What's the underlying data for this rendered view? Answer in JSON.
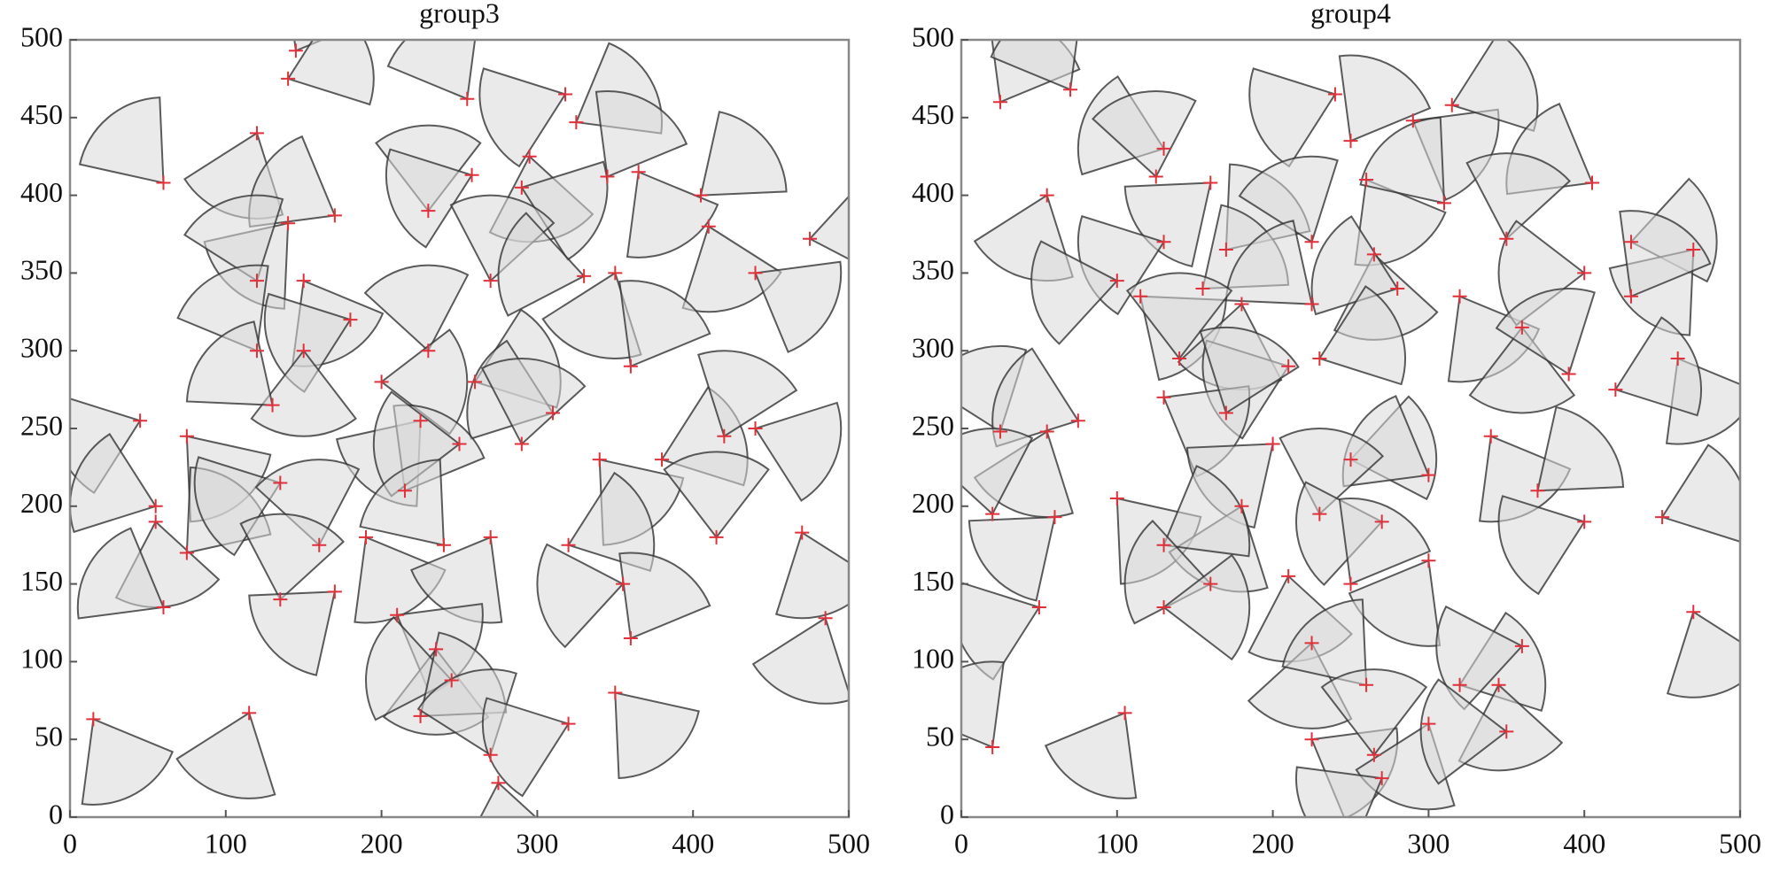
{
  "chart_data": [
    {
      "type": "sector",
      "title": "group3",
      "sensing_radius": 55,
      "sensing_angle": 75,
      "fill": "#d9d9d9",
      "stroke": "#333333",
      "marker_color": "#e0303a",
      "xlim": [
        0,
        500
      ],
      "ylim": [
        0,
        500
      ],
      "xticks": [
        0,
        100,
        200,
        300,
        400,
        500
      ],
      "yticks": [
        0,
        50,
        100,
        150,
        200,
        250,
        300,
        350,
        400,
        450,
        500
      ],
      "x": [
        145,
        140,
        255,
        318,
        325,
        120,
        60,
        295,
        230,
        170,
        258,
        290,
        345,
        365,
        405,
        140,
        410,
        475,
        120,
        150,
        270,
        330,
        350,
        440,
        180,
        230,
        260,
        310,
        360,
        150,
        120,
        45,
        75,
        130,
        200,
        225,
        215,
        250,
        290,
        340,
        380,
        420,
        440,
        55,
        55,
        75,
        135,
        160,
        190,
        240,
        270,
        320,
        355,
        415,
        470,
        60,
        135,
        170,
        210,
        235,
        245,
        225,
        270,
        275,
        320,
        350,
        360,
        485,
        15,
        115
      ],
      "y": [
        493,
        475,
        462,
        465,
        447,
        440,
        408,
        425,
        390,
        387,
        413,
        405,
        412,
        415,
        400,
        382,
        380,
        372,
        345,
        345,
        345,
        348,
        350,
        350,
        320,
        300,
        280,
        260,
        290,
        300,
        300,
        255,
        245,
        265,
        280,
        255,
        210,
        240,
        240,
        230,
        230,
        245,
        250,
        200,
        190,
        170,
        215,
        175,
        180,
        175,
        180,
        175,
        150,
        180,
        183,
        135,
        140,
        145,
        130,
        108,
        88,
        65,
        40,
        22,
        60,
        80,
        115,
        128,
        63,
        67
      ],
      "heading": [
        60,
        20,
        120,
        200,
        30,
        250,
        130,
        280,
        90,
        150,
        200,
        340,
        60,
        300,
        40,
        230,
        290,
        10,
        110,
        300,
        80,
        170,
        250,
        330,
        200,
        100,
        20,
        160,
        60,
        270,
        120,
        200,
        310,
        140,
        0,
        230,
        60,
        180,
        80,
        310,
        20,
        70,
        340,
        160,
        280,
        50,
        200,
        100,
        300,
        130,
        240,
        20,
        190,
        90,
        290,
        150,
        80,
        220,
        330,
        270,
        170,
        40,
        110,
        280,
        200,
        310,
        60,
        250,
        300,
        250
      ]
    },
    {
      "type": "sector",
      "title": "group4",
      "sensing_radius": 55,
      "sensing_angle": 75,
      "fill": "#d9d9d9",
      "stroke": "#333333",
      "marker_color": "#e0303a",
      "xlim": [
        0,
        500
      ],
      "ylim": [
        0,
        500
      ],
      "xticks": [
        0,
        100,
        200,
        300,
        400,
        500
      ],
      "yticks": [
        0,
        50,
        100,
        150,
        200,
        250,
        300,
        350,
        400,
        450,
        500
      ],
      "x": [
        25,
        70,
        240,
        250,
        290,
        315,
        130,
        125,
        160,
        260,
        310,
        405,
        55,
        130,
        170,
        225,
        265,
        280,
        350,
        430,
        470,
        100,
        115,
        155,
        180,
        225,
        320,
        400,
        430,
        140,
        210,
        230,
        360,
        390,
        460,
        420,
        25,
        55,
        75,
        130,
        170,
        200,
        250,
        300,
        340,
        370,
        400,
        450,
        20,
        60,
        100,
        180,
        230,
        270,
        130,
        160,
        210,
        250,
        300,
        50,
        130,
        225,
        260,
        320,
        345,
        360,
        470,
        225,
        300,
        350,
        265,
        270,
        105,
        20
      ],
      "y": [
        460,
        468,
        465,
        435,
        448,
        458,
        430,
        412,
        408,
        410,
        395,
        408,
        400,
        370,
        365,
        370,
        362,
        340,
        372,
        370,
        365,
        345,
        335,
        340,
        330,
        330,
        335,
        350,
        335,
        295,
        290,
        295,
        315,
        285,
        295,
        275,
        248,
        248,
        255,
        270,
        260,
        240,
        230,
        220,
        245,
        210,
        190,
        193,
        195,
        193,
        205,
        200,
        195,
        190,
        175,
        150,
        155,
        150,
        165,
        135,
        135,
        112,
        85,
        85,
        85,
        110,
        132,
        50,
        60,
        55,
        40,
        25,
        67,
        45
      ],
      "heading": [
        60,
        120,
        200,
        60,
        330,
        20,
        160,
        100,
        220,
        300,
        130,
        150,
        250,
        200,
        50,
        110,
        280,
        160,
        80,
        10,
        230,
        190,
        320,
        40,
        260,
        140,
        300,
        180,
        60,
        90,
        200,
        20,
        270,
        110,
        300,
        20,
        110,
        250,
        160,
        330,
        70,
        220,
        10,
        150,
        300,
        40,
        200,
        20,
        100,
        220,
        310,
        250,
        80,
        190,
        30,
        170,
        280,
        60,
        240,
        200,
        0,
        260,
        130,
        20,
        280,
        190,
        290,
        330,
        250,
        180,
        90,
        210,
        240,
        120
      ]
    }
  ]
}
